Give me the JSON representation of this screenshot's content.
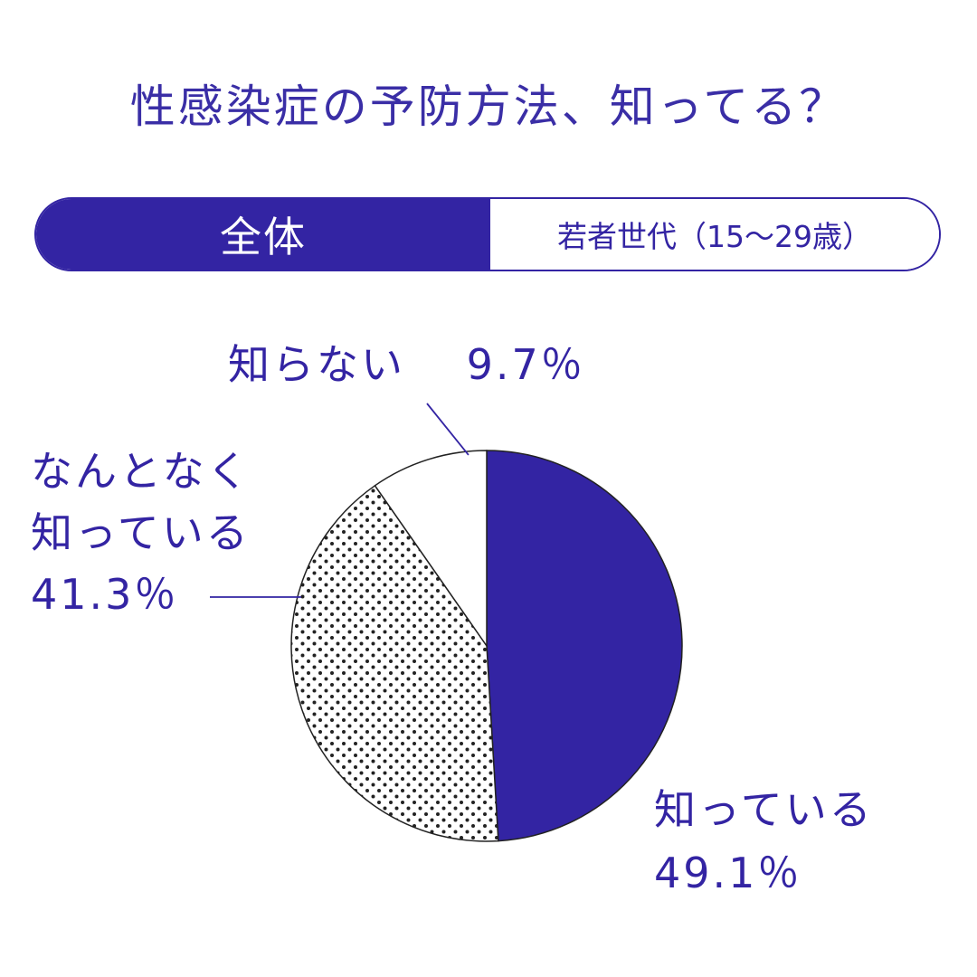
{
  "title": "性感染症の予防方法、知ってる？",
  "tabs": {
    "all_label": "全体",
    "young_label": "若者世代（15～29歳）"
  },
  "colors": {
    "accent": "#3324a3",
    "background": "#ffffff",
    "text": "#3a2ea6"
  },
  "chart_data": {
    "type": "pie",
    "title": "性感染症の予防方法、知ってる？",
    "series": [
      {
        "name": "知っている",
        "value": 49.1,
        "value_label": "49.1％",
        "fill": "solid"
      },
      {
        "name": "なんとなく知っている",
        "value": 41.3,
        "value_label": "41.3％",
        "fill": "dots"
      },
      {
        "name": "知らない",
        "value": 9.7,
        "value_label": "9.7％",
        "fill": "white"
      }
    ],
    "labels": {
      "know_line1": "知っている",
      "know_value": "49.1％",
      "somewhat_line1": "なんとなく",
      "somewhat_line2": "知っている",
      "somewhat_value": "41.3％",
      "dont_know_name": "知らない",
      "dont_know_value": "9.7％"
    },
    "legend": "none"
  }
}
